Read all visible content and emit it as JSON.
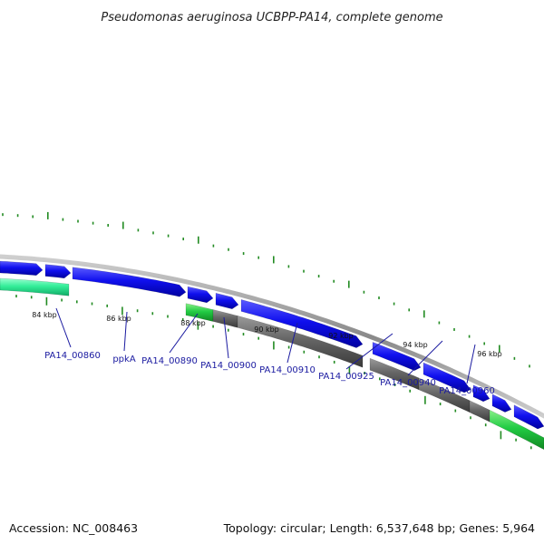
{
  "title": "Pseudomonas aeruginosa UCBPP-PA14, complete genome",
  "footer": {
    "accession": "Accession: NC_008463",
    "summary": "Topology: circular; Length: 6,537,648 bp; Genes: 5,964"
  },
  "kbp_labels": [
    "84 kbp",
    "86 kbp",
    "88 kbp",
    "90 kbp",
    "92 kbp",
    "94 kbp",
    "96 kbp"
  ],
  "gene_labels": [
    "PA14_00860",
    "ppkA",
    "PA14_00890",
    "PA14_00900",
    "PA14_00910",
    "PA14_00925",
    "PA14_00940",
    "PA14_00960"
  ],
  "colors": {
    "backbone": "#9a9a9a",
    "forward_gene": "#1010ee",
    "reverse_gene_green": "#22cc44",
    "reverse_gene_teal": "#22ee99",
    "reverse_gene_gray": "#666666",
    "tick": "#228b22",
    "label_line": "#1a1aa0"
  }
}
